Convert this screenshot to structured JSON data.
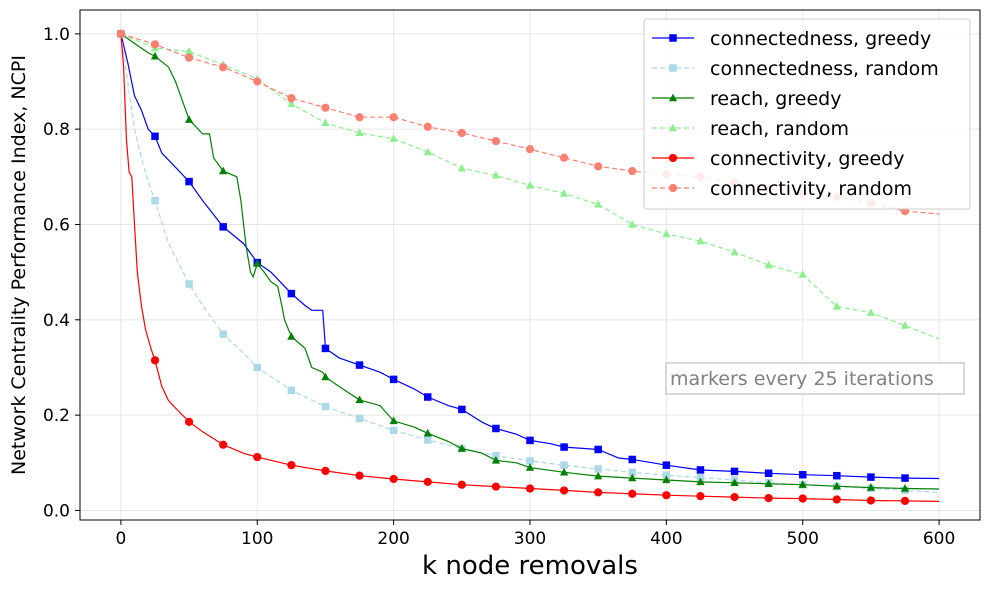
{
  "chart_data": {
    "type": "line",
    "xlabel": "k node removals",
    "ylabel": "Network Centrality Performance Index, NCPI",
    "xlim": [
      -30,
      630
    ],
    "ylim": [
      -0.02,
      1.05
    ],
    "xticks": [
      0,
      100,
      200,
      300,
      400,
      500,
      600
    ],
    "yticks": [
      0.0,
      0.2,
      0.4,
      0.6,
      0.8,
      1.0
    ],
    "grid": true,
    "legend_position": "top-right",
    "annotation": "markers every 25 iterations",
    "marker_x": [
      0,
      25,
      50,
      75,
      100,
      125,
      150,
      175,
      200,
      225,
      250,
      275,
      300,
      325,
      350,
      375,
      400,
      425,
      450,
      475,
      500,
      525,
      550,
      575
    ],
    "series": [
      {
        "name": "connectedness, greedy",
        "color": "#0000ff",
        "dash": "solid",
        "marker": "square",
        "x": [
          0,
          5,
          10,
          15,
          20,
          25,
          30,
          40,
          50,
          60,
          75,
          90,
          100,
          110,
          125,
          135,
          140,
          148,
          150,
          160,
          175,
          190,
          200,
          215,
          225,
          240,
          250,
          265,
          275,
          290,
          300,
          315,
          325,
          340,
          350,
          365,
          375,
          390,
          400,
          425,
          450,
          475,
          500,
          525,
          550,
          575,
          600
        ],
        "y": [
          1.0,
          0.94,
          0.87,
          0.84,
          0.8,
          0.785,
          0.75,
          0.72,
          0.69,
          0.65,
          0.595,
          0.56,
          0.52,
          0.5,
          0.455,
          0.43,
          0.42,
          0.42,
          0.34,
          0.32,
          0.305,
          0.29,
          0.275,
          0.255,
          0.238,
          0.22,
          0.212,
          0.185,
          0.172,
          0.16,
          0.147,
          0.14,
          0.133,
          0.13,
          0.128,
          0.11,
          0.107,
          0.1,
          0.095,
          0.085,
          0.082,
          0.078,
          0.075,
          0.073,
          0.07,
          0.068,
          0.067
        ]
      },
      {
        "name": "connectedness, random",
        "color": "#add8e6",
        "dash": "dashed",
        "marker": "square",
        "x": [
          0,
          5,
          10,
          15,
          20,
          25,
          35,
          50,
          60,
          75,
          90,
          100,
          125,
          150,
          175,
          200,
          225,
          250,
          275,
          300,
          325,
          350,
          375,
          400,
          425,
          450,
          475,
          500,
          525,
          550,
          575,
          600
        ],
        "y": [
          1.0,
          0.9,
          0.8,
          0.74,
          0.69,
          0.65,
          0.56,
          0.475,
          0.43,
          0.37,
          0.33,
          0.3,
          0.252,
          0.218,
          0.193,
          0.168,
          0.148,
          0.13,
          0.115,
          0.104,
          0.095,
          0.087,
          0.08,
          0.074,
          0.069,
          0.064,
          0.058,
          0.054,
          0.05,
          0.046,
          0.042,
          0.038
        ]
      },
      {
        "name": "reach, greedy",
        "color": "#008000",
        "dash": "solid",
        "marker": "triangle",
        "x": [
          0,
          10,
          20,
          25,
          35,
          40,
          50,
          60,
          65,
          68,
          75,
          85,
          88,
          90,
          92,
          95,
          97,
          100,
          105,
          110,
          115,
          118,
          120,
          125,
          135,
          140,
          148,
          150,
          160,
          175,
          190,
          200,
          215,
          225,
          240,
          250,
          265,
          275,
          290,
          300,
          325,
          350,
          375,
          400,
          425,
          450,
          475,
          500,
          525,
          550,
          575,
          600
        ],
        "y": [
          1.0,
          0.98,
          0.96,
          0.953,
          0.93,
          0.9,
          0.82,
          0.79,
          0.79,
          0.74,
          0.712,
          0.7,
          0.65,
          0.6,
          0.55,
          0.5,
          0.49,
          0.518,
          0.5,
          0.48,
          0.47,
          0.43,
          0.4,
          0.365,
          0.34,
          0.3,
          0.29,
          0.28,
          0.26,
          0.232,
          0.22,
          0.188,
          0.175,
          0.162,
          0.145,
          0.13,
          0.12,
          0.105,
          0.1,
          0.09,
          0.08,
          0.072,
          0.068,
          0.064,
          0.06,
          0.058,
          0.056,
          0.054,
          0.051,
          0.048,
          0.046,
          0.045
        ]
      },
      {
        "name": "reach, random",
        "color": "#90ee90",
        "dash": "dashed",
        "marker": "triangle",
        "x": [
          0,
          25,
          50,
          75,
          100,
          125,
          150,
          175,
          200,
          225,
          250,
          275,
          300,
          325,
          350,
          375,
          400,
          425,
          450,
          475,
          500,
          525,
          550,
          575,
          600
        ],
        "y": [
          1.0,
          0.97,
          0.963,
          0.935,
          0.905,
          0.853,
          0.813,
          0.792,
          0.78,
          0.752,
          0.718,
          0.703,
          0.682,
          0.665,
          0.642,
          0.6,
          0.58,
          0.565,
          0.542,
          0.515,
          0.495,
          0.428,
          0.415,
          0.388,
          0.36
        ]
      },
      {
        "name": "connectivity, greedy",
        "color": "#ff0000",
        "dash": "solid",
        "marker": "circle",
        "x": [
          0,
          2,
          4,
          6,
          8,
          10,
          12,
          15,
          18,
          20,
          22,
          25,
          30,
          35,
          40,
          50,
          60,
          75,
          90,
          100,
          125,
          150,
          175,
          200,
          225,
          250,
          275,
          300,
          325,
          350,
          375,
          400,
          425,
          450,
          475,
          500,
          525,
          550,
          575,
          600
        ],
        "y": [
          1.0,
          0.93,
          0.78,
          0.71,
          0.7,
          0.6,
          0.5,
          0.43,
          0.38,
          0.36,
          0.34,
          0.315,
          0.26,
          0.23,
          0.215,
          0.186,
          0.165,
          0.138,
          0.12,
          0.112,
          0.095,
          0.083,
          0.073,
          0.066,
          0.06,
          0.054,
          0.05,
          0.046,
          0.042,
          0.038,
          0.035,
          0.032,
          0.03,
          0.028,
          0.026,
          0.025,
          0.023,
          0.021,
          0.02,
          0.019
        ]
      },
      {
        "name": "connectivity, random",
        "color": "#fa8072",
        "dash": "dashed",
        "marker": "circle",
        "x": [
          0,
          25,
          50,
          75,
          100,
          125,
          150,
          175,
          200,
          225,
          250,
          275,
          300,
          325,
          350,
          375,
          400,
          425,
          450,
          475,
          500,
          525,
          550,
          575,
          600
        ],
        "y": [
          1.0,
          0.978,
          0.95,
          0.93,
          0.9,
          0.865,
          0.845,
          0.825,
          0.825,
          0.805,
          0.792,
          0.775,
          0.758,
          0.74,
          0.722,
          0.712,
          0.705,
          0.7,
          0.688,
          0.675,
          0.665,
          0.658,
          0.645,
          0.628,
          0.622
        ]
      }
    ]
  }
}
